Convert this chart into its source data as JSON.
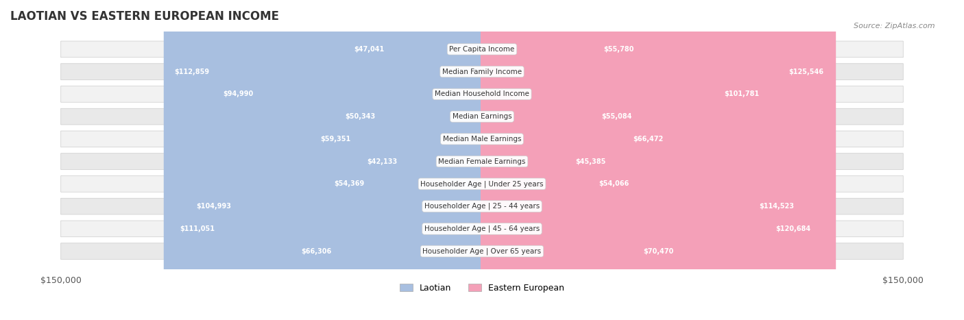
{
  "title": "LAOTIAN VS EASTERN EUROPEAN INCOME",
  "source": "Source: ZipAtlas.com",
  "max_value": 150000,
  "legend_laotian": "Laotian",
  "legend_eastern": "Eastern European",
  "color_laotian": "#a8bfe0",
  "color_eastern": "#f4a0b8",
  "color_laotian_dark": "#7b9fd4",
  "color_eastern_dark": "#f06090",
  "bg_row_light": "#f0f0f0",
  "bg_row_alt": "#e8e8e8",
  "categories": [
    "Per Capita Income",
    "Median Family Income",
    "Median Household Income",
    "Median Earnings",
    "Median Male Earnings",
    "Median Female Earnings",
    "Householder Age | Under 25 years",
    "Householder Age | 25 - 44 years",
    "Householder Age | 45 - 64 years",
    "Householder Age | Over 65 years"
  ],
  "laotian_values": [
    47041,
    112859,
    94990,
    50343,
    59351,
    42133,
    54369,
    104993,
    111051,
    66306
  ],
  "eastern_values": [
    55780,
    125546,
    101781,
    55084,
    66472,
    45385,
    54066,
    114523,
    120684,
    70470
  ],
  "laotian_labels": [
    "$47,041",
    "$112,859",
    "$94,990",
    "$50,343",
    "$59,351",
    "$42,133",
    "$54,369",
    "$104,993",
    "$111,051",
    "$66,306"
  ],
  "eastern_labels": [
    "$55,780",
    "$125,546",
    "$101,781",
    "$55,084",
    "$66,472",
    "$45,385",
    "$54,066",
    "$114,523",
    "$120,684",
    "$70,470"
  ]
}
